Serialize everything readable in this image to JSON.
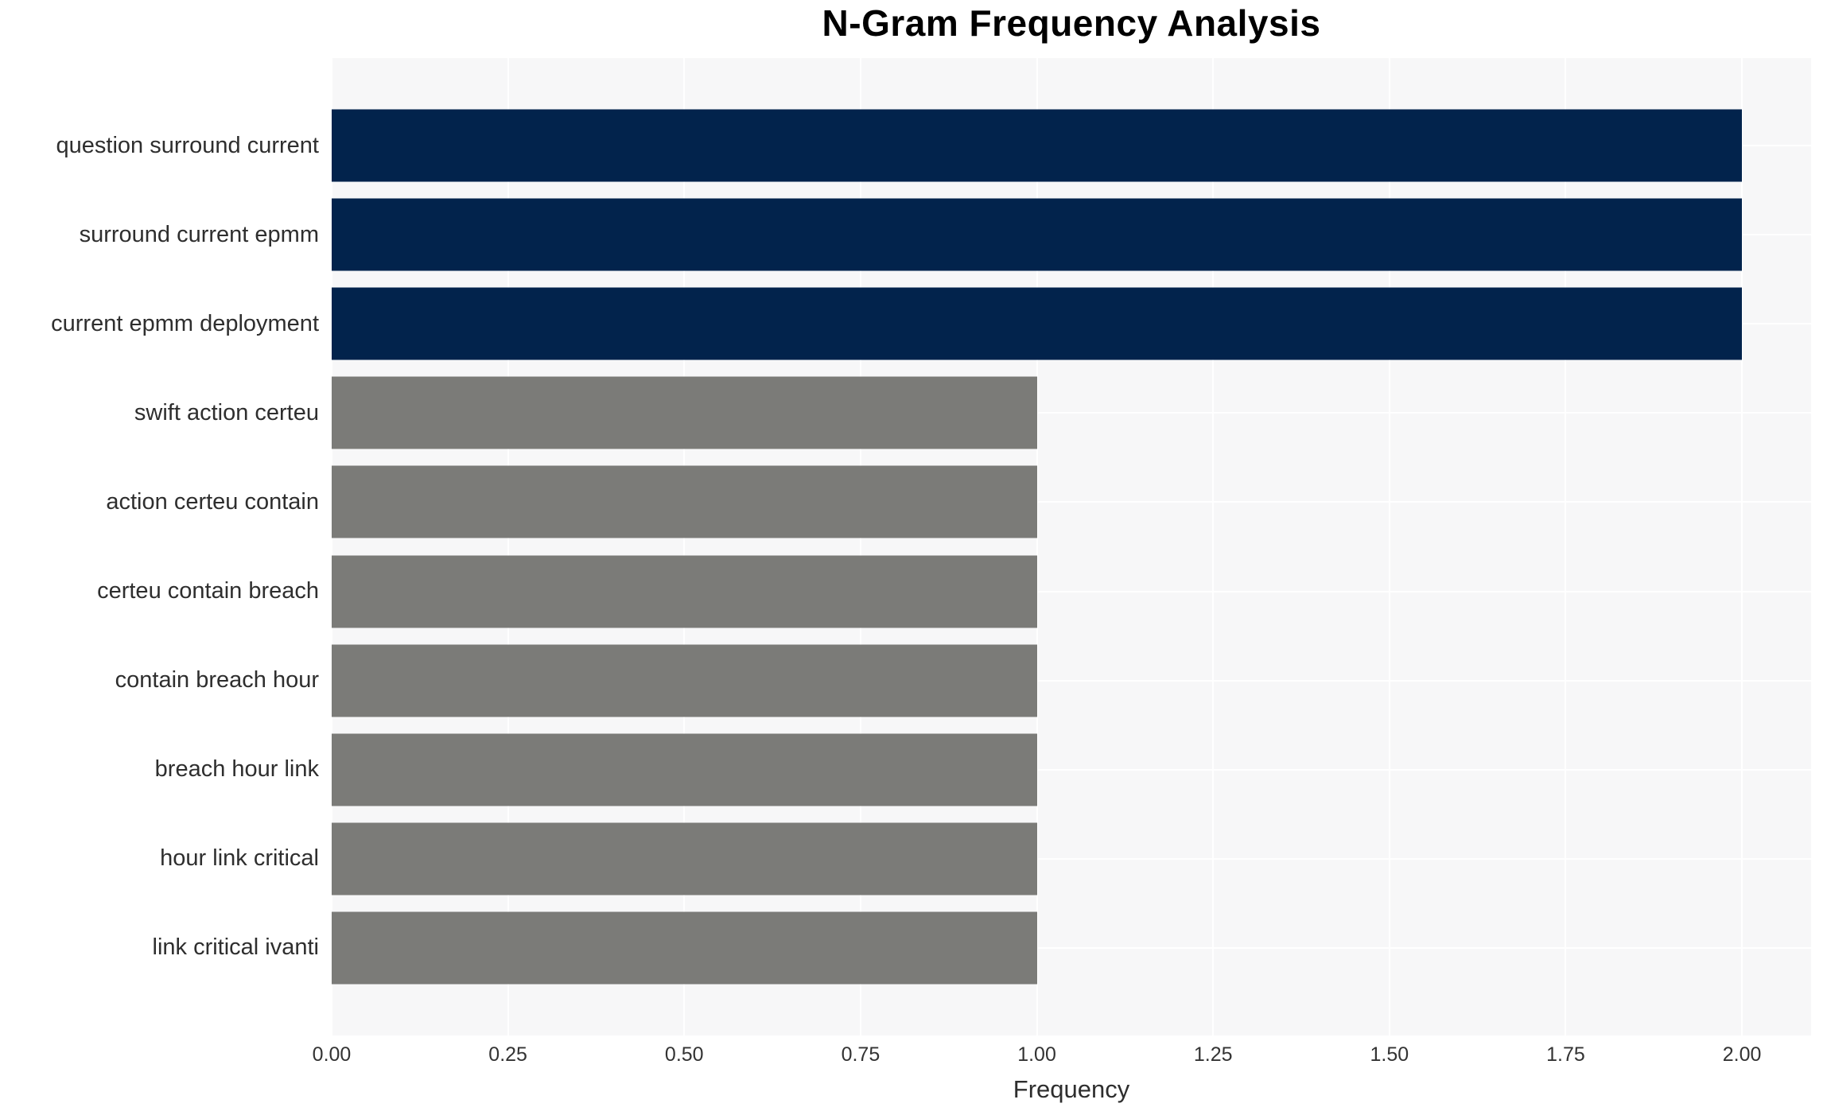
{
  "chart_data": {
    "type": "bar",
    "orientation": "horizontal",
    "title": "N-Gram Frequency Analysis",
    "xlabel": "Frequency",
    "ylabel": "",
    "categories": [
      "question surround current",
      "surround current epmm",
      "current epmm deployment",
      "swift action certeu",
      "action certeu contain",
      "certeu contain breach",
      "contain breach hour",
      "breach hour link",
      "hour link critical",
      "link critical ivanti"
    ],
    "values": [
      2,
      2,
      2,
      1,
      1,
      1,
      1,
      1,
      1,
      1
    ],
    "bar_colors": [
      "#02234c",
      "#02234c",
      "#02234c",
      "#7b7b78",
      "#7b7b78",
      "#7b7b78",
      "#7b7b78",
      "#7b7b78",
      "#7b7b78",
      "#7b7b78"
    ],
    "xlim": [
      0,
      2.098
    ],
    "xticks": [
      0,
      0.25,
      0.5,
      0.75,
      1.0,
      1.25,
      1.5,
      1.75,
      2.0
    ],
    "xtick_labels": [
      "0.00",
      "0.25",
      "0.50",
      "0.75",
      "1.00",
      "1.25",
      "1.50",
      "1.75",
      "2.00"
    ],
    "grid": "on",
    "legend": "none",
    "colors": {
      "plot_background": "#f7f7f8",
      "gridline": "#ffffff",
      "title_text": "#000000",
      "axis_text": "#2e2e2e",
      "tick_text": "#333333",
      "page_background": "#ffffff"
    }
  }
}
